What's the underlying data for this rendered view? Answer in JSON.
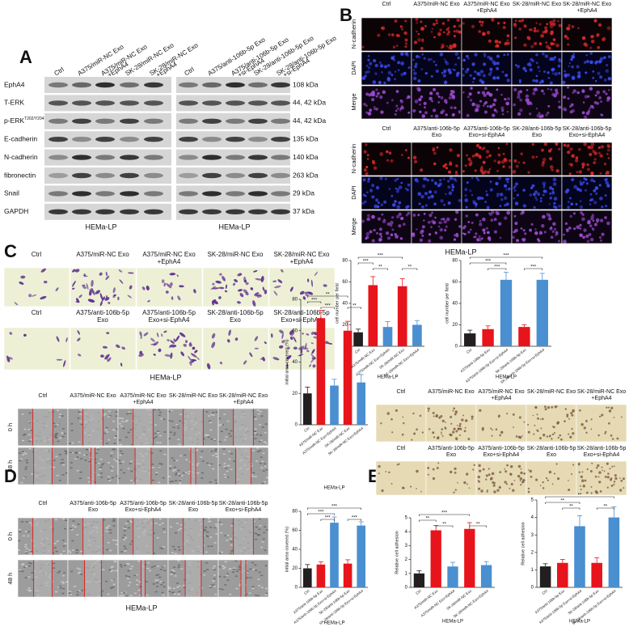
{
  "panels": {
    "A": {
      "letter": "A",
      "headers_left": [
        [
          "Ctrl"
        ],
        [
          "A375/miR-NC Exo"
        ],
        [
          "A375/miR-NC Exo",
          "+EphA4"
        ],
        [
          "SK-28/miR-NC Exo"
        ],
        [
          "SK-28/miR-NC Exo",
          "+EphA4"
        ]
      ],
      "headers_right": [
        [
          "Ctrl"
        ],
        [
          "A375/anti-106b-5p Exo"
        ],
        [
          "A375/anti-106b-5p Exo",
          "+si-EphA4"
        ],
        [
          "SK-28/anti-106b-5p Exo"
        ],
        [
          "SK-28/anti-106b-5p Exo",
          "+si-EphA4"
        ]
      ],
      "rows": [
        {
          "label": "EphA4",
          "size": "108 kDa"
        },
        {
          "label": "T-ERK",
          "size": "44, 42 kDa"
        },
        {
          "label": "p-ERK",
          "sup": "T202/Y204",
          "size": "44, 42 kDa"
        },
        {
          "label": "E-cadherin",
          "size": "135 kDa"
        },
        {
          "label": "N-cadherin",
          "size": "140 kDa"
        },
        {
          "label": "fibronectin",
          "size": "263 kDa"
        },
        {
          "label": "Snail",
          "size": "29 kDa"
        },
        {
          "label": "GAPDH",
          "size": "37 kDa"
        }
      ],
      "footers": [
        "HEMa-LP",
        "HEMa-LP"
      ]
    },
    "B": {
      "letter": "B",
      "headers_top": [
        [
          "Ctrl"
        ],
        [
          "A375/miR-NC Exo"
        ],
        [
          "A375/miR-NC Exo",
          "+EphA4"
        ],
        [
          "SK-28/miR-NC Exo"
        ],
        [
          "SK-28/miR-NC Exo",
          "+EphA4"
        ]
      ],
      "headers_bottom": [
        [
          "Ctrl"
        ],
        [
          "A375/anti-106b-5p",
          "Exo"
        ],
        [
          "A375/anti-106b-5p",
          "Exo+si-EphA4"
        ],
        [
          "SK-28/anti-106b-5p",
          "Exo"
        ],
        [
          "SK-28/anti-106b-5p",
          "Exo+si-EphA4"
        ]
      ],
      "channels": [
        "N-cadherin",
        "DAPI",
        "Merge"
      ],
      "footer": "HEMa-LP"
    },
    "C": {
      "letter": "C",
      "headers_top": [
        [
          "Ctrl"
        ],
        [
          "A375/miR-NC Exo"
        ],
        [
          "A375/miR-NC Exo",
          "+EphA4"
        ],
        [
          "SK-28/miR-NC Exo"
        ],
        [
          "SK-28/miR-NC Exo",
          "+EphA4"
        ]
      ],
      "headers_bottom": [
        [
          "Ctrl"
        ],
        [
          "A375/anti-106b-5p",
          "Exo"
        ],
        [
          "A375/anti-106b-5p",
          "Exo+si-EphA4"
        ],
        [
          "SK-28/anti-106b-5p",
          "Exo"
        ],
        [
          "SK-28/anti-106b-5p",
          "Exo+si-EphA4"
        ]
      ],
      "footer": "HEMa-LP"
    },
    "D": {
      "letter": "D",
      "headers_top": [
        [
          "Ctrl"
        ],
        [
          "A375/miR-NC Exo"
        ],
        [
          "A375/miR-NC Exo",
          "+EphA4"
        ],
        [
          "SK-28/miR-NC Exo"
        ],
        [
          "SK-28/miR-NC Exo",
          "+EphA4"
        ]
      ],
      "headers_bottom": [
        [
          "Ctrl"
        ],
        [
          "A375/anti-106b-5p",
          "Exo"
        ],
        [
          "A375/anti-106b-5p",
          "Exo+si-EphA4"
        ],
        [
          "SK-28/anti-106b-5p",
          "Exo"
        ],
        [
          "SK-28/anti-106b-5p",
          "Exo+si-EphA4"
        ]
      ],
      "times": [
        "0 h",
        "48 h"
      ],
      "footer": "HEMa-LP"
    },
    "E": {
      "letter": "E",
      "headers_top": [
        [
          "Ctrl"
        ],
        [
          "A375/miR-NC Exo"
        ],
        [
          "A375/miR-NC Exo",
          "+EphA4"
        ],
        [
          "SK-28/miR-NC Exo"
        ],
        [
          "SK-28/miR-NC Exo",
          "+EphA4"
        ]
      ],
      "headers_bottom": [
        [
          "Ctrl"
        ],
        [
          "A375/anti-106b-5p",
          "Exo"
        ],
        [
          "A375/anti-106b-5p",
          "Exo+si-EphA4"
        ],
        [
          "SK-28/anti-106b-5p",
          "Exo"
        ],
        [
          "SK-28/anti-106b-5p",
          "Exo+si-EphA4"
        ]
      ]
    }
  },
  "chart_data": [
    {
      "type": "bar",
      "ylabel": "cell number per field",
      "xlabel": "HEMa-LP",
      "categories": [
        "Ctrl",
        "A375/miR-NC Exo",
        "A375/miR-NC Exo+EphA4",
        "SK-28/miR-NC Exo",
        "SK-28/miR-NC Exo+EphA4"
      ],
      "values": [
        13,
        57,
        18,
        56,
        20
      ],
      "errors": [
        3,
        8,
        5,
        7,
        4
      ],
      "colors": [
        "#231f20",
        "#e8141b",
        "#4a8fd0",
        "#e8141b",
        "#4a8fd0"
      ],
      "ylim": [
        0,
        80
      ],
      "yticks": [
        0,
        20,
        40,
        60,
        80
      ],
      "annotations": [
        "***",
        "**",
        "***",
        "**"
      ]
    },
    {
      "type": "bar",
      "ylabel": "cell number per field",
      "xlabel": "HEMa-LP",
      "categories": [
        "Ctrl",
        "A375/anti-106b-5p Exo",
        "A375/anti-106b-5p Exo+si-EphA4",
        "SK-28/anti-106b-5p Exo",
        "SK-28/anti-106b-5p Exo+si-EphA4"
      ],
      "values": [
        12,
        16,
        62,
        18,
        62
      ],
      "errors": [
        3,
        3,
        7,
        2,
        6
      ],
      "colors": [
        "#231f20",
        "#e8141b",
        "#4a8fd0",
        "#e8141b",
        "#4a8fd0"
      ],
      "ylim": [
        0,
        80
      ],
      "yticks": [
        0,
        20,
        40,
        60,
        80
      ],
      "annotations": [
        "***",
        "***",
        "***",
        "***"
      ]
    },
    {
      "type": "bar",
      "ylabel": "initial area covered (%)",
      "xlabel": "HEMa-LP",
      "categories": [
        "Ctrl",
        "A375/miR-NC Exo",
        "A375/miR-NC Exo+EphA4",
        "SK-28/miR-NC Exo",
        "SK-28/miR-NC Exo+EphA4"
      ],
      "values": [
        20,
        68,
        25,
        60,
        27
      ],
      "errors": [
        4,
        5,
        4,
        6,
        5
      ],
      "colors": [
        "#231f20",
        "#e8141b",
        "#4a8fd0",
        "#e8141b",
        "#4a8fd0"
      ],
      "ylim": [
        0,
        80
      ],
      "yticks": [
        0,
        20,
        40,
        60,
        80
      ],
      "annotations": [
        "***",
        "***",
        "**",
        "**"
      ]
    },
    {
      "type": "bar",
      "ylabel": "initial area covered (%)",
      "xlabel": "HEMa-LP",
      "categories": [
        "Ctrl",
        "A375/anti-106b-5p Exo",
        "A375/anti-106b-5p Exo+si-EphA4",
        "SK-28/anti-106b-5p Exo",
        "SK-28/anti-106b-5p Exo+si-EphA4"
      ],
      "values": [
        20,
        24,
        68,
        25,
        65
      ],
      "errors": [
        4,
        3,
        6,
        4,
        4
      ],
      "colors": [
        "#231f20",
        "#e8141b",
        "#4a8fd0",
        "#e8141b",
        "#4a8fd0"
      ],
      "ylim": [
        0,
        80
      ],
      "yticks": [
        0,
        20,
        40,
        60,
        80
      ],
      "annotations": [
        "***",
        "***",
        "***",
        "***"
      ]
    },
    {
      "type": "bar",
      "ylabel": "Relative cell adhesion",
      "xlabel": "HEMa-LP",
      "categories": [
        "Ctrl",
        "A375/miR-NC Exo",
        "A375/miR-NC Exo+EphA4",
        "SK-28/miR-NC Exo",
        "SK-28/miR-NC Exo+EphA4"
      ],
      "values": [
        1.0,
        4.1,
        1.5,
        4.2,
        1.6
      ],
      "errors": [
        0.2,
        0.35,
        0.3,
        0.45,
        0.25
      ],
      "colors": [
        "#231f20",
        "#e8141b",
        "#4a8fd0",
        "#e8141b",
        "#4a8fd0"
      ],
      "ylim": [
        0,
        5
      ],
      "yticks": [
        0,
        1,
        2,
        3,
        4,
        5
      ],
      "annotations": [
        "***",
        "**",
        "**",
        "**"
      ]
    },
    {
      "type": "bar",
      "ylabel": "Relative cell adhesion",
      "xlabel": "HEMa-LP",
      "categories": [
        "Ctrl",
        "A375/anti-106b-5p Exo",
        "A375/anti-106b-5p Exo+si-EphA4",
        "SK-28/anti-106b-5p Exo",
        "SK-28/anti-106b-5p Exo+si-EphA4"
      ],
      "values": [
        1.2,
        1.4,
        3.5,
        1.4,
        4.0
      ],
      "errors": [
        0.15,
        0.2,
        0.6,
        0.3,
        0.6
      ],
      "colors": [
        "#231f20",
        "#e8141b",
        "#4a8fd0",
        "#e8141b",
        "#4a8fd0"
      ],
      "ylim": [
        0,
        5
      ],
      "yticks": [
        0,
        1,
        2,
        3,
        4,
        5
      ],
      "annotations": [
        "**",
        "**",
        "**",
        "**"
      ]
    }
  ]
}
